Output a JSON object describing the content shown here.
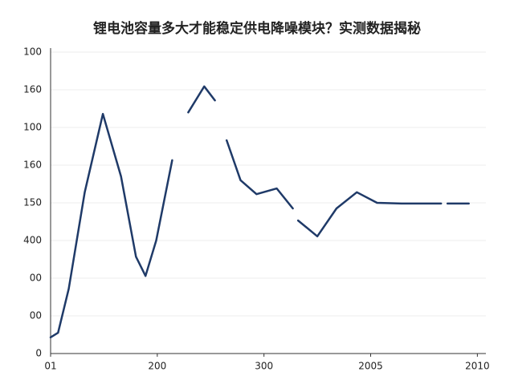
{
  "chart_data": {
    "type": "line",
    "title": "锂电池容量多大才能稳定供电降噪模块？实测数据揭秘",
    "x": [
      0,
      0.07,
      0.17,
      0.32,
      0.49,
      0.66,
      0.8,
      0.89,
      0.99,
      1.14,
      null,
      1.29,
      1.44,
      1.54,
      null,
      1.65,
      1.78,
      1.93,
      2.12,
      2.27,
      null,
      2.32,
      2.5,
      2.68,
      2.87,
      3.06,
      3.29,
      3.66,
      null,
      3.72,
      3.92
    ],
    "series": [
      {
        "color": "#1f3a68",
        "values": [
          0.43,
          0.55,
          1.72,
          4.28,
          6.36,
          4.7,
          2.57,
          2.06,
          3.0,
          5.13,
          null,
          6.4,
          7.09,
          6.72,
          null,
          5.66,
          4.6,
          4.23,
          4.38,
          3.85,
          null,
          3.53,
          3.11,
          3.85,
          4.28,
          4.0,
          3.98,
          3.98,
          null,
          3.98,
          3.98
        ]
      }
    ],
    "xlim": [
      0,
      4.08
    ],
    "ylim": [
      0,
      8
    ],
    "xticks": [
      {
        "value": 0,
        "label": "01"
      },
      {
        "value": 1,
        "label": "200"
      },
      {
        "value": 2,
        "label": "300"
      },
      {
        "value": 3,
        "label": "2005"
      },
      {
        "value": 4,
        "label": "2010"
      }
    ],
    "yticks": [
      {
        "value": 0,
        "label": "0"
      },
      {
        "value": 1,
        "label": "00"
      },
      {
        "value": 2,
        "label": "00"
      },
      {
        "value": 3,
        "label": "400"
      },
      {
        "value": 4,
        "label": "150"
      },
      {
        "value": 5,
        "label": "160"
      },
      {
        "value": 6,
        "label": "100"
      },
      {
        "value": 7,
        "label": "160"
      },
      {
        "value": 8,
        "label": "100"
      }
    ],
    "grid": true
  }
}
